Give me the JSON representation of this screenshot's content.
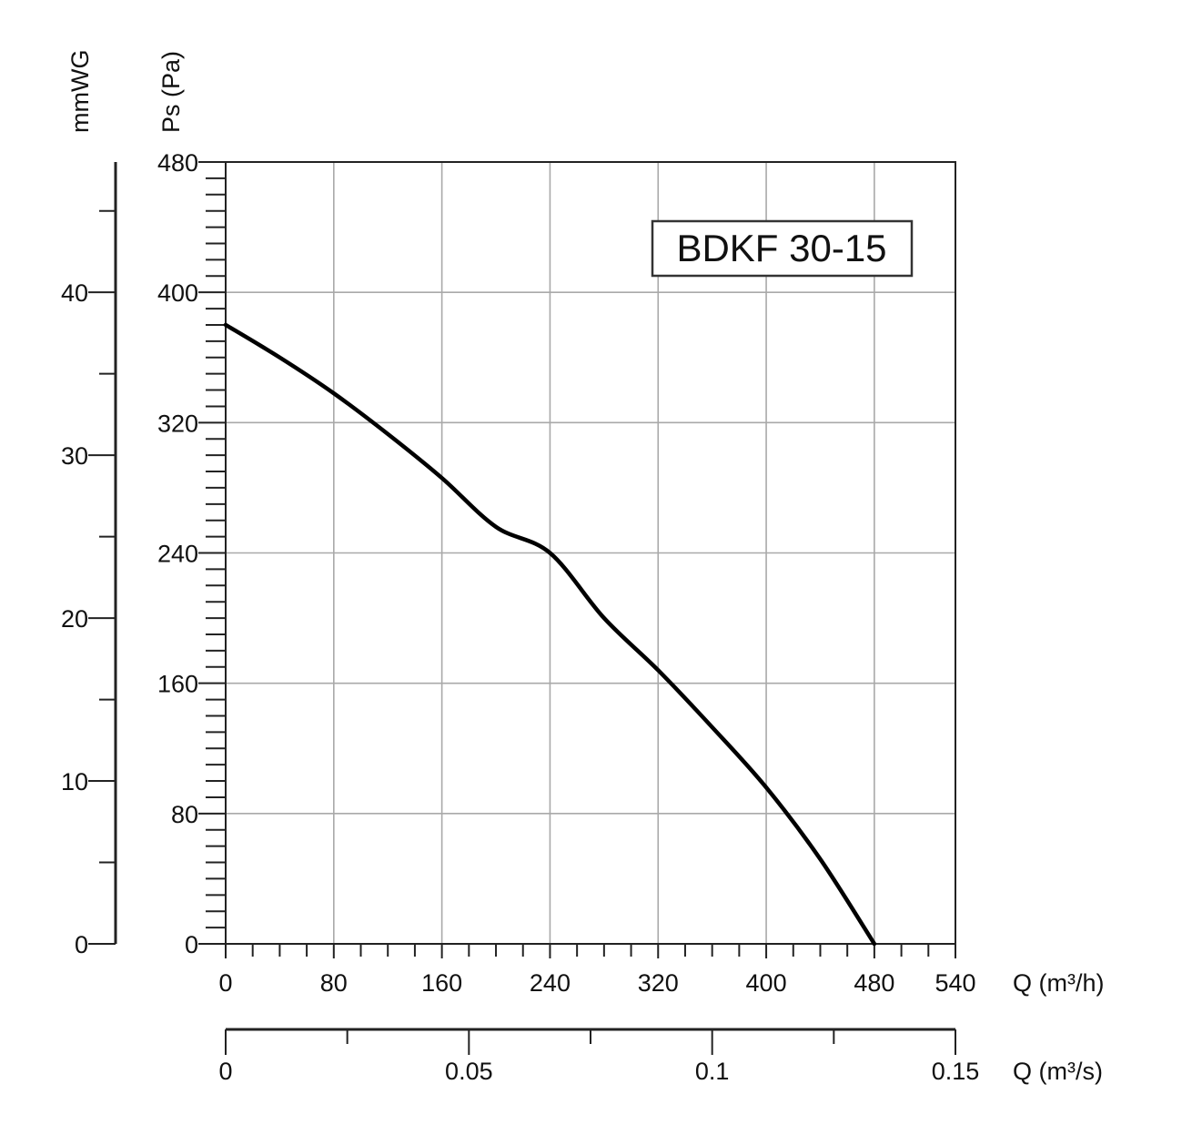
{
  "chart_data": {
    "type": "line",
    "title": "",
    "model_label": "BDKF 30-15",
    "x_axis": {
      "label": "Q (m³/h)",
      "range": [
        0,
        540
      ],
      "ticks": [
        0,
        80,
        160,
        240,
        320,
        400,
        480,
        540
      ],
      "tick_labels": [
        "0",
        "80",
        "160",
        "240",
        "320",
        "400",
        "480",
        "540"
      ],
      "minor_step": 20
    },
    "x2_axis": {
      "label": "Q (m³/s)",
      "range": [
        0,
        0.15
      ],
      "ticks": [
        0,
        0.05,
        0.1,
        0.15
      ],
      "tick_labels": [
        "0",
        "0.05",
        "0.1",
        "0.15"
      ],
      "minor_ticks": [
        0.025,
        0.075,
        0.125
      ]
    },
    "y_axis": {
      "label": "Ps (Pa)",
      "range": [
        0,
        480
      ],
      "ticks": [
        0,
        80,
        160,
        240,
        320,
        400,
        480
      ],
      "tick_labels": [
        "0",
        "80",
        "160",
        "240",
        "320",
        "400",
        "480"
      ],
      "minor_step": 10
    },
    "y2_axis": {
      "label": "mmWG",
      "range": [
        0,
        48
      ],
      "ticks": [
        0,
        10,
        20,
        30,
        40
      ],
      "tick_labels": [
        "0",
        "10",
        "20",
        "30",
        "40"
      ],
      "minor_step": 5
    },
    "grid": true,
    "series": [
      {
        "x": [
          0,
          40,
          80,
          120,
          160,
          200,
          240,
          280,
          320,
          360,
          400,
          440,
          480
        ],
        "y": [
          380,
          360,
          338,
          313,
          286,
          256,
          240,
          200,
          168,
          133,
          96,
          52,
          0
        ]
      }
    ]
  }
}
